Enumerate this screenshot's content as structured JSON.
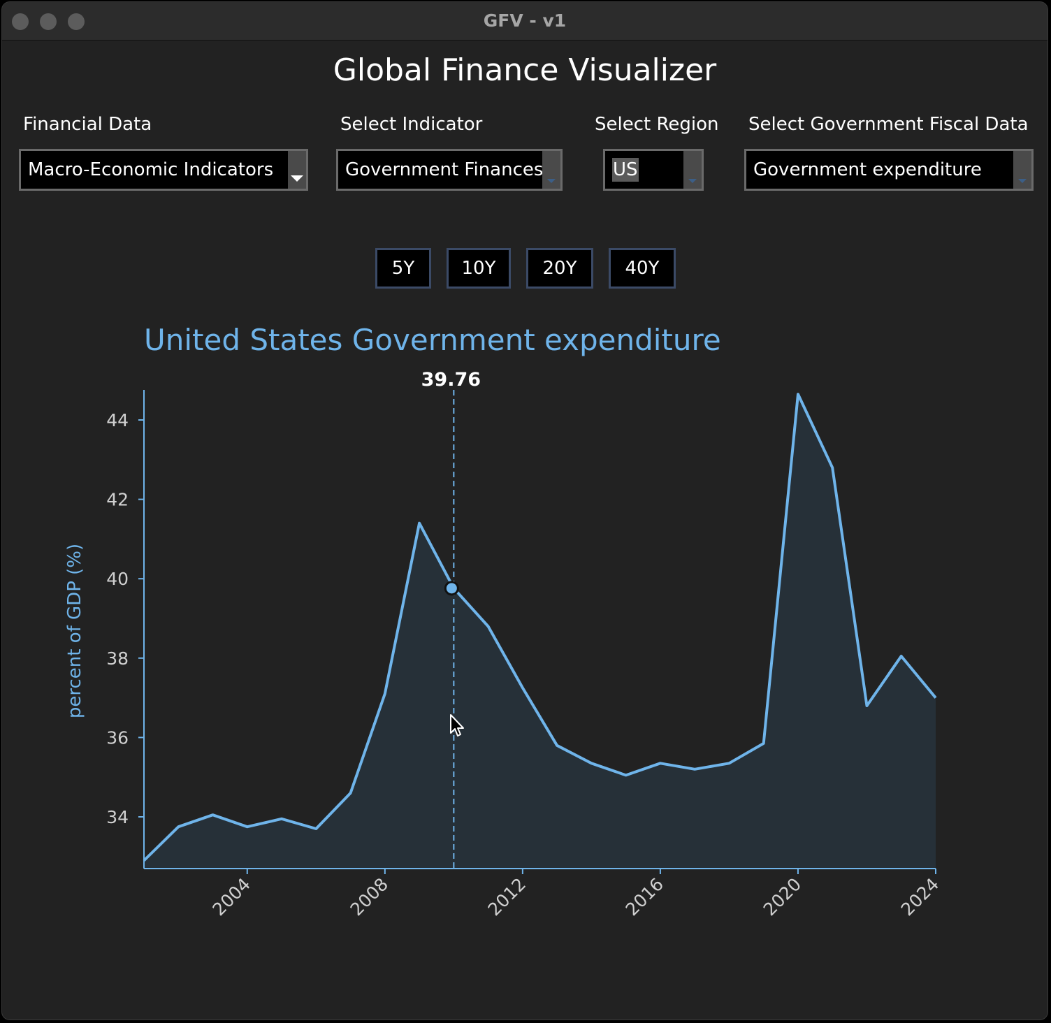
{
  "window": {
    "title": "GFV - v1"
  },
  "app": {
    "title": "Global Finance Visualizer"
  },
  "controls": {
    "financial_data": {
      "label": "Financial Data",
      "value": "Macro-Economic Indicators"
    },
    "indicator": {
      "label": "Select Indicator",
      "value": "Government Finances"
    },
    "region": {
      "label": "Select Region",
      "value": "US"
    },
    "fiscal": {
      "label": "Select Government Fiscal Data",
      "value": "Government expenditure"
    }
  },
  "range_buttons": [
    "5Y",
    "10Y",
    "20Y",
    "40Y"
  ],
  "colors": {
    "accent": "#6fb4ea",
    "background": "#222222",
    "fill": "#263038"
  },
  "chart_data": {
    "type": "area",
    "title": "United States Government expenditure",
    "ylabel": "percent of GDP (%)",
    "xlabel": "",
    "x": [
      2001,
      2002,
      2003,
      2004,
      2005,
      2006,
      2007,
      2008,
      2009,
      2010,
      2011,
      2012,
      2013,
      2014,
      2015,
      2016,
      2017,
      2018,
      2019,
      2020,
      2021,
      2022,
      2023,
      2024
    ],
    "values": [
      32.9,
      33.75,
      34.05,
      33.75,
      33.95,
      33.7,
      34.6,
      37.1,
      41.4,
      39.76,
      38.8,
      37.25,
      35.8,
      35.35,
      35.05,
      35.35,
      35.2,
      35.35,
      35.85,
      44.65,
      42.8,
      36.8,
      38.05,
      37.0
    ],
    "xlim": [
      2001,
      2024
    ],
    "ylim": [
      32.8,
      45.0
    ],
    "xticks": [
      2004,
      2008,
      2012,
      2016,
      2020,
      2024
    ],
    "yticks": [
      34,
      36,
      38,
      40,
      42,
      44
    ],
    "hover": {
      "x": 2010,
      "value": 39.76,
      "label": "39.76"
    },
    "grid": false,
    "legend": "none"
  }
}
